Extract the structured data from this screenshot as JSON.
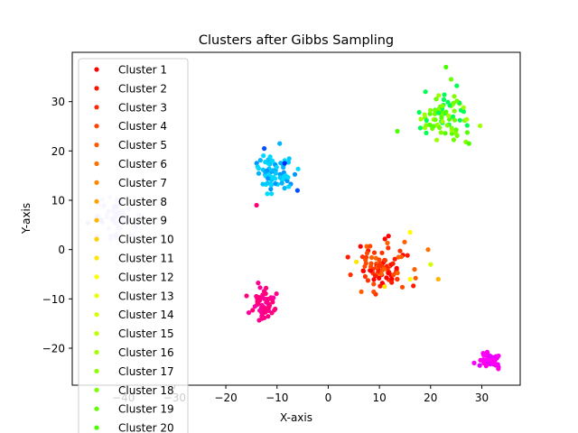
{
  "chart_data": {
    "type": "scatter",
    "title": "Clusters after Gibbs Sampling",
    "xlabel": "X-axis",
    "ylabel": "Y-axis",
    "xlim": [
      -50,
      37.5
    ],
    "ylim": [
      -27.5,
      40
    ],
    "xticks": [
      -40,
      -30,
      -20,
      -10,
      0,
      10,
      20,
      30
    ],
    "yticks": [
      -20,
      -10,
      0,
      10,
      20,
      30
    ],
    "grid": false,
    "legend_position": "top-left",
    "legend": [
      {
        "name": "Cluster 1",
        "color": "#ff0000"
      },
      {
        "name": "Cluster 2",
        "color": "#ff1300"
      },
      {
        "name": "Cluster 3",
        "color": "#ff2a00"
      },
      {
        "name": "Cluster 4",
        "color": "#ff4200"
      },
      {
        "name": "Cluster 5",
        "color": "#ff5900"
      },
      {
        "name": "Cluster 6",
        "color": "#ff7000"
      },
      {
        "name": "Cluster 7",
        "color": "#ff8800"
      },
      {
        "name": "Cluster 8",
        "color": "#ff9f00"
      },
      {
        "name": "Cluster 9",
        "color": "#ffb600"
      },
      {
        "name": "Cluster 10",
        "color": "#ffcd00"
      },
      {
        "name": "Cluster 11",
        "color": "#ffe500"
      },
      {
        "name": "Cluster 12",
        "color": "#fffc00"
      },
      {
        "name": "Cluster 13",
        "color": "#ecff00"
      },
      {
        "name": "Cluster 14",
        "color": "#d5ff00"
      },
      {
        "name": "Cluster 15",
        "color": "#beff00"
      },
      {
        "name": "Cluster 16",
        "color": "#a6ff00"
      },
      {
        "name": "Cluster 17",
        "color": "#8fff00"
      },
      {
        "name": "Cluster 18",
        "color": "#78ff00"
      },
      {
        "name": "Cluster 19",
        "color": "#60ff00"
      },
      {
        "name": "Cluster 20",
        "color": "#49ff00"
      }
    ],
    "clusters": [
      {
        "center": [
          23,
          27
        ],
        "spread": [
          2.4,
          2.6
        ],
        "count": 80,
        "colors": [
          "#6cff00",
          "#55ff00",
          "#80ff00",
          "#00ff55",
          "#a0ff00"
        ]
      },
      {
        "center": [
          -10.5,
          16
        ],
        "spread": [
          2.0,
          2.3
        ],
        "count": 70,
        "colors": [
          "#00c8ff",
          "#00b4ff",
          "#00d8ff",
          "#0096ff"
        ]
      },
      {
        "center": [
          -42,
          7
        ],
        "spread": [
          2.0,
          1.9
        ],
        "count": 55,
        "colors": [
          "#d8ccff",
          "#ccc0ff",
          "#e0d8ff"
        ]
      },
      {
        "center": [
          11,
          -3.5
        ],
        "spread": [
          2.3,
          2.4
        ],
        "count": 95,
        "colors": [
          "#ff1a00",
          "#ff3200",
          "#ff4a00",
          "#ff0000",
          "#ff6000"
        ]
      },
      {
        "center": [
          -12.5,
          -11.3
        ],
        "spread": [
          1.2,
          1.3
        ],
        "count": 55,
        "colors": [
          "#ff008c",
          "#ff0078",
          "#ff00a0"
        ]
      },
      {
        "center": [
          31.5,
          -22.5
        ],
        "spread": [
          1.1,
          0.8
        ],
        "count": 50,
        "colors": [
          "#ff00e6",
          "#ff00ff",
          "#e600ff"
        ]
      }
    ],
    "outliers": [
      {
        "x": 23,
        "y": 37,
        "color": "#49ff00"
      },
      {
        "x": 19,
        "y": 32,
        "color": "#00ff55"
      },
      {
        "x": 13.5,
        "y": 24,
        "color": "#49ff00"
      },
      {
        "x": 27.5,
        "y": 21.5,
        "color": "#49ff00"
      },
      {
        "x": 16,
        "y": 3.5,
        "color": "#fffc00"
      },
      {
        "x": 5.5,
        "y": -2.5,
        "color": "#ffe500"
      },
      {
        "x": 21.5,
        "y": -6,
        "color": "#ffb600"
      },
      {
        "x": 20,
        "y": -3,
        "color": "#d5ff00"
      },
      {
        "x": 19.5,
        "y": 0,
        "color": "#ff7000"
      },
      {
        "x": 16,
        "y": -6,
        "color": "#fffc00"
      },
      {
        "x": 11,
        "y": -7.5,
        "color": "#ffe500"
      },
      {
        "x": -6,
        "y": 12,
        "color": "#0050ff"
      },
      {
        "x": -12.5,
        "y": 20.5,
        "color": "#0050ff"
      },
      {
        "x": -8.5,
        "y": 17.5,
        "color": "#0028ff"
      },
      {
        "x": -14,
        "y": 9,
        "color": "#ff0078"
      },
      {
        "x": 28.5,
        "y": -23,
        "color": "#ff00ff"
      },
      {
        "x": -37,
        "y": 7,
        "color": "#d8ccff"
      }
    ]
  }
}
